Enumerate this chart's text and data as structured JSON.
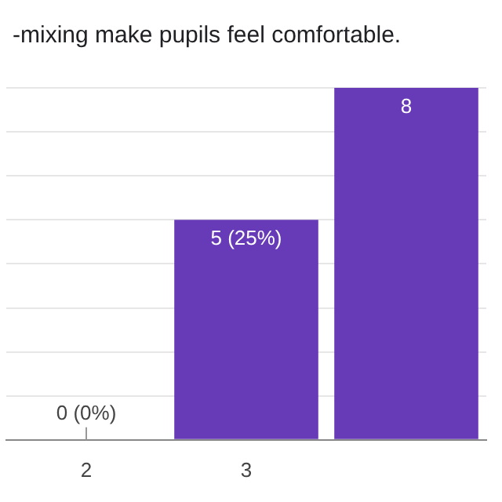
{
  "chart_data": {
    "type": "bar",
    "title": "-mixing make pupils feel comfortable.",
    "categories": [
      "2",
      "3",
      null
    ],
    "values": [
      0,
      5,
      8
    ],
    "value_labels": [
      "0 (0%)",
      "5 (25%)",
      "8"
    ],
    "color": "#673ab7",
    "ylim": [
      0,
      8
    ],
    "yticks": [
      {
        "value": 0,
        "label": null
      },
      {
        "value": 1,
        "label": null
      },
      {
        "value": 2,
        "label": null
      },
      {
        "value": 3,
        "label": null
      },
      {
        "value": 4,
        "label": null
      },
      {
        "value": 5,
        "label": null
      },
      {
        "value": 6,
        "label": null
      },
      {
        "value": 7,
        "label": null
      },
      {
        "value": 8,
        "label": null
      }
    ],
    "grid": "y",
    "tick_labels": "x",
    "legend": false
  }
}
